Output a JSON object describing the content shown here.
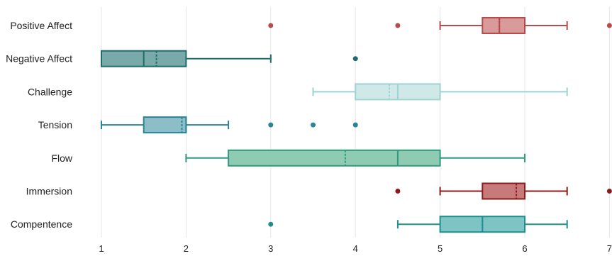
{
  "chart_data": {
    "type": "boxplot",
    "orientation": "horizontal",
    "xlim": [
      1,
      7
    ],
    "x_ticks": [
      "1",
      "2",
      "3",
      "4",
      "5",
      "6",
      "7"
    ],
    "grid": "vertical",
    "categories": [
      {
        "label": "Positive Affect",
        "whisker_low": 5,
        "q1": 5.5,
        "median": 5.7,
        "mean": 5.7,
        "q3": 6,
        "whisker_high": 6.5,
        "outliers": [
          3,
          4.5,
          7
        ],
        "color": "#b84a4a",
        "fill": "#d99a9a"
      },
      {
        "label": "Negative Affect",
        "whisker_low": 1,
        "q1": 1,
        "median": 1.5,
        "mean": 1.65,
        "q3": 2,
        "whisker_high": 3,
        "outliers": [
          4
        ],
        "color": "#1f6c6c",
        "fill": "#7aa9a9"
      },
      {
        "label": "Challenge",
        "whisker_low": 3.5,
        "q1": 4,
        "median": 4.5,
        "mean": 4.4,
        "q3": 5,
        "whisker_high": 6.5,
        "outliers": [],
        "color": "#9fd3d3",
        "fill": "#cfe8e8"
      },
      {
        "label": "Tension",
        "whisker_low": 1,
        "q1": 1.5,
        "median": 2,
        "mean": 1.95,
        "q3": 2,
        "whisker_high": 2.5,
        "outliers": [
          3,
          3.5,
          4
        ],
        "color": "#2b8595",
        "fill": "#8dbdc6"
      },
      {
        "label": "Flow",
        "whisker_low": 2,
        "q1": 2.5,
        "median": 4.5,
        "mean": 3.88,
        "q3": 5,
        "whisker_high": 6,
        "outliers": [],
        "color": "#2f9a7e",
        "fill": "#8fcbb3"
      },
      {
        "label": "Immersion",
        "whisker_low": 5,
        "q1": 5.5,
        "median": 6,
        "mean": 5.9,
        "q3": 6,
        "whisker_high": 6.5,
        "outliers": [
          4.5,
          7
        ],
        "color": "#8e1b1b",
        "fill": "#c77a7a"
      },
      {
        "label": "Compentence",
        "whisker_low": 4.5,
        "q1": 5,
        "median": 5.5,
        "mean": 5.5,
        "q3": 6,
        "whisker_high": 6.5,
        "outliers": [
          3
        ],
        "color": "#1f9090",
        "fill": "#7ec4c4"
      }
    ]
  }
}
